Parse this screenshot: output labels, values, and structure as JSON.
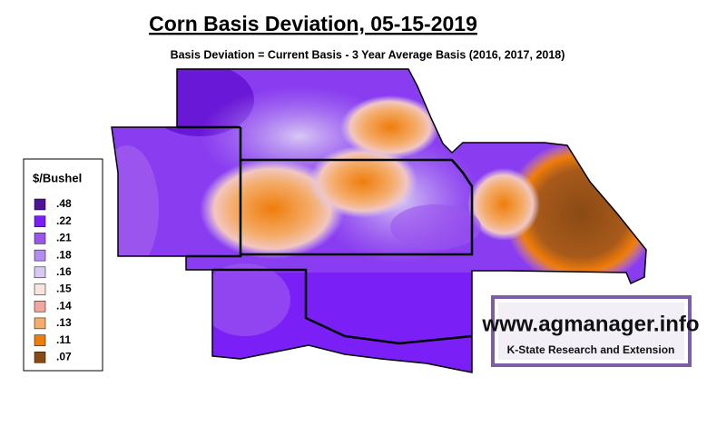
{
  "header": {
    "title": "Corn Basis Deviation, 05-15-2019",
    "subtitle": "Basis Deviation = Current Basis - 3 Year Average Basis (2016, 2017, 2018)"
  },
  "legend": {
    "title": "$/Bushel",
    "items": [
      {
        "label": ".48",
        "color": "#4f1196"
      },
      {
        "label": ".22",
        "color": "#7a1ff5"
      },
      {
        "label": ".21",
        "color": "#9b55ee"
      },
      {
        "label": ".18",
        "color": "#b48cf2"
      },
      {
        "label": ".16",
        "color": "#d8c8f4"
      },
      {
        "label": ".15",
        "color": "#f7e4e0"
      },
      {
        "label": ".14",
        "color": "#f2a6a0"
      },
      {
        "label": ".13",
        "color": "#f4ad6c"
      },
      {
        "label": ".11",
        "color": "#ef7d0a"
      },
      {
        "label": ".07",
        "color": "#8a4a14"
      }
    ]
  },
  "logo": {
    "url": "www.agmanager.info",
    "org": "K-State Research and Extension"
  }
}
